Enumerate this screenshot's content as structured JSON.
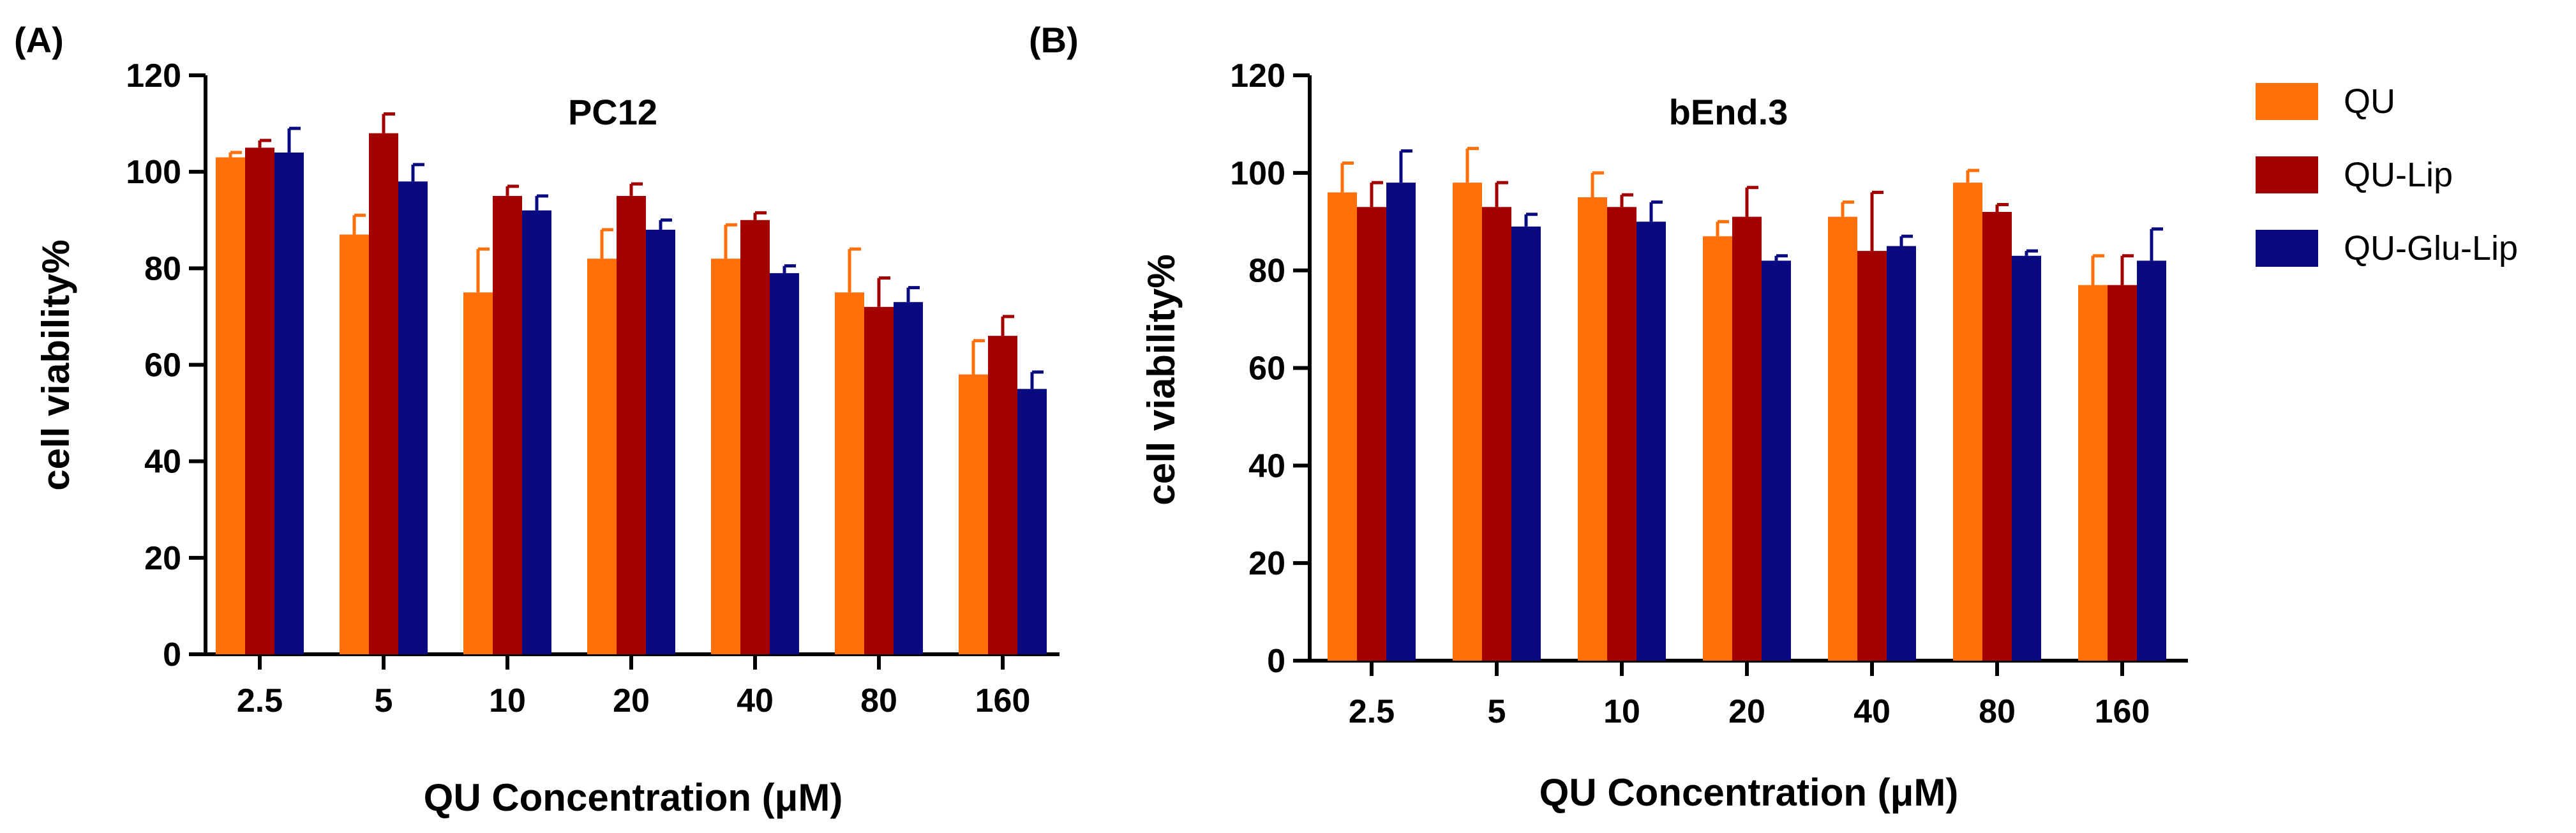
{
  "chart_data": [
    {
      "type": "bar",
      "panel_label": "(A)",
      "title": "PC12",
      "xlabel": "QU Concentration (μM)",
      "ylabel": "cell viability%",
      "ylim": [
        0,
        120
      ],
      "yticks": [
        "0",
        "20",
        "40",
        "60",
        "80",
        "100",
        "120"
      ],
      "categories": [
        "2.5",
        "5",
        "10",
        "20",
        "40",
        "80",
        "160"
      ],
      "series": [
        {
          "name": "QU",
          "color": "#FF6F0A",
          "values": [
            103,
            87,
            75,
            82,
            82,
            75,
            58
          ],
          "errors": [
            1,
            4,
            9,
            6,
            7,
            9,
            7
          ]
        },
        {
          "name": "QU-Lip",
          "color": "#A30000",
          "values": [
            105,
            108,
            95,
            95,
            90,
            72,
            66
          ],
          "errors": [
            1.5,
            4,
            2,
            2.5,
            1.5,
            6,
            4
          ]
        },
        {
          "name": "QU-Glu-Lip",
          "color": "#0A0A80",
          "values": [
            104,
            98,
            92,
            88,
            79,
            73,
            55
          ],
          "errors": [
            5,
            3.5,
            3,
            2,
            1.5,
            3,
            3.5
          ]
        }
      ]
    },
    {
      "type": "bar",
      "panel_label": "(B)",
      "title": "bEnd.3",
      "xlabel": "QU Concentration (μM)",
      "ylabel": "cell viability%",
      "ylim": [
        0,
        120
      ],
      "yticks": [
        "0",
        "20",
        "40",
        "60",
        "80",
        "100",
        "120"
      ],
      "categories": [
        "2.5",
        "5",
        "10",
        "20",
        "40",
        "80",
        "160"
      ],
      "series": [
        {
          "name": "QU",
          "color": "#FF6F0A",
          "values": [
            96,
            98,
            95,
            87,
            91,
            98,
            77
          ],
          "errors": [
            6,
            7,
            5,
            3,
            3,
            2.5,
            6
          ]
        },
        {
          "name": "QU-Lip",
          "color": "#A30000",
          "values": [
            93,
            93,
            93,
            91,
            84,
            92,
            77
          ],
          "errors": [
            5,
            5,
            2.5,
            6,
            12,
            1.5,
            6
          ]
        },
        {
          "name": "QU-Glu-Lip",
          "color": "#0A0A80",
          "values": [
            98,
            89,
            90,
            82,
            85,
            83,
            82
          ],
          "errors": [
            6.5,
            2.5,
            4,
            1,
            2,
            1,
            6.5
          ]
        }
      ]
    }
  ],
  "legend": [
    {
      "label": "QU",
      "color": "#FF6F0A"
    },
    {
      "label": "QU-Lip",
      "color": "#A30000"
    },
    {
      "label": "QU-Glu-Lip",
      "color": "#0A0A80"
    }
  ]
}
